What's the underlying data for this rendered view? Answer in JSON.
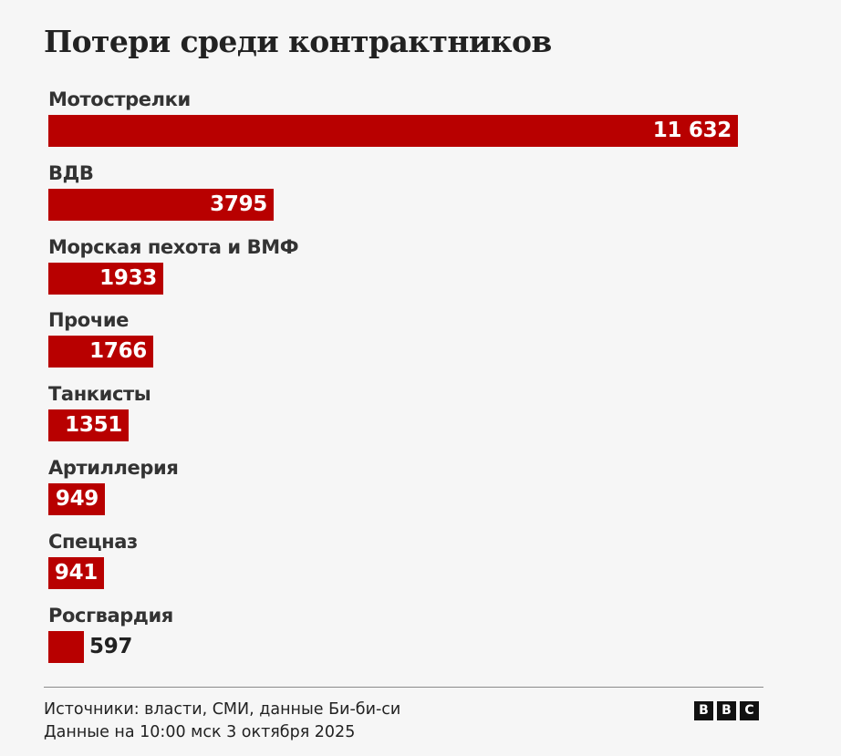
{
  "title": "Потери среди контрактников",
  "chart_data": {
    "type": "bar",
    "orientation": "horizontal",
    "title": "Потери среди контрактников",
    "categories": [
      "Мотострелки",
      "ВДВ",
      "Морская пехота и ВМФ",
      "Прочие",
      "Танкисты",
      "Артиллерия",
      "Спецназ",
      "Росгвардия"
    ],
    "values": [
      11632,
      3795,
      1933,
      1766,
      1351,
      949,
      941,
      597
    ],
    "value_labels": [
      "11 632",
      "3795",
      "1933",
      "1766",
      "1351",
      "949",
      "941",
      "597"
    ],
    "xlim": [
      0,
      11632
    ],
    "grid": false,
    "legend": "none"
  },
  "colors": {
    "bar": "#b80000",
    "label_inside": "#ffffff",
    "label_outside": "#222222"
  },
  "footer": {
    "source_line": "Источники: власти, СМИ, данные Би-би-си",
    "date_line": "Данные на 10:00 мск 3 октября 2025",
    "logo_letters": [
      "B",
      "B",
      "C"
    ]
  }
}
